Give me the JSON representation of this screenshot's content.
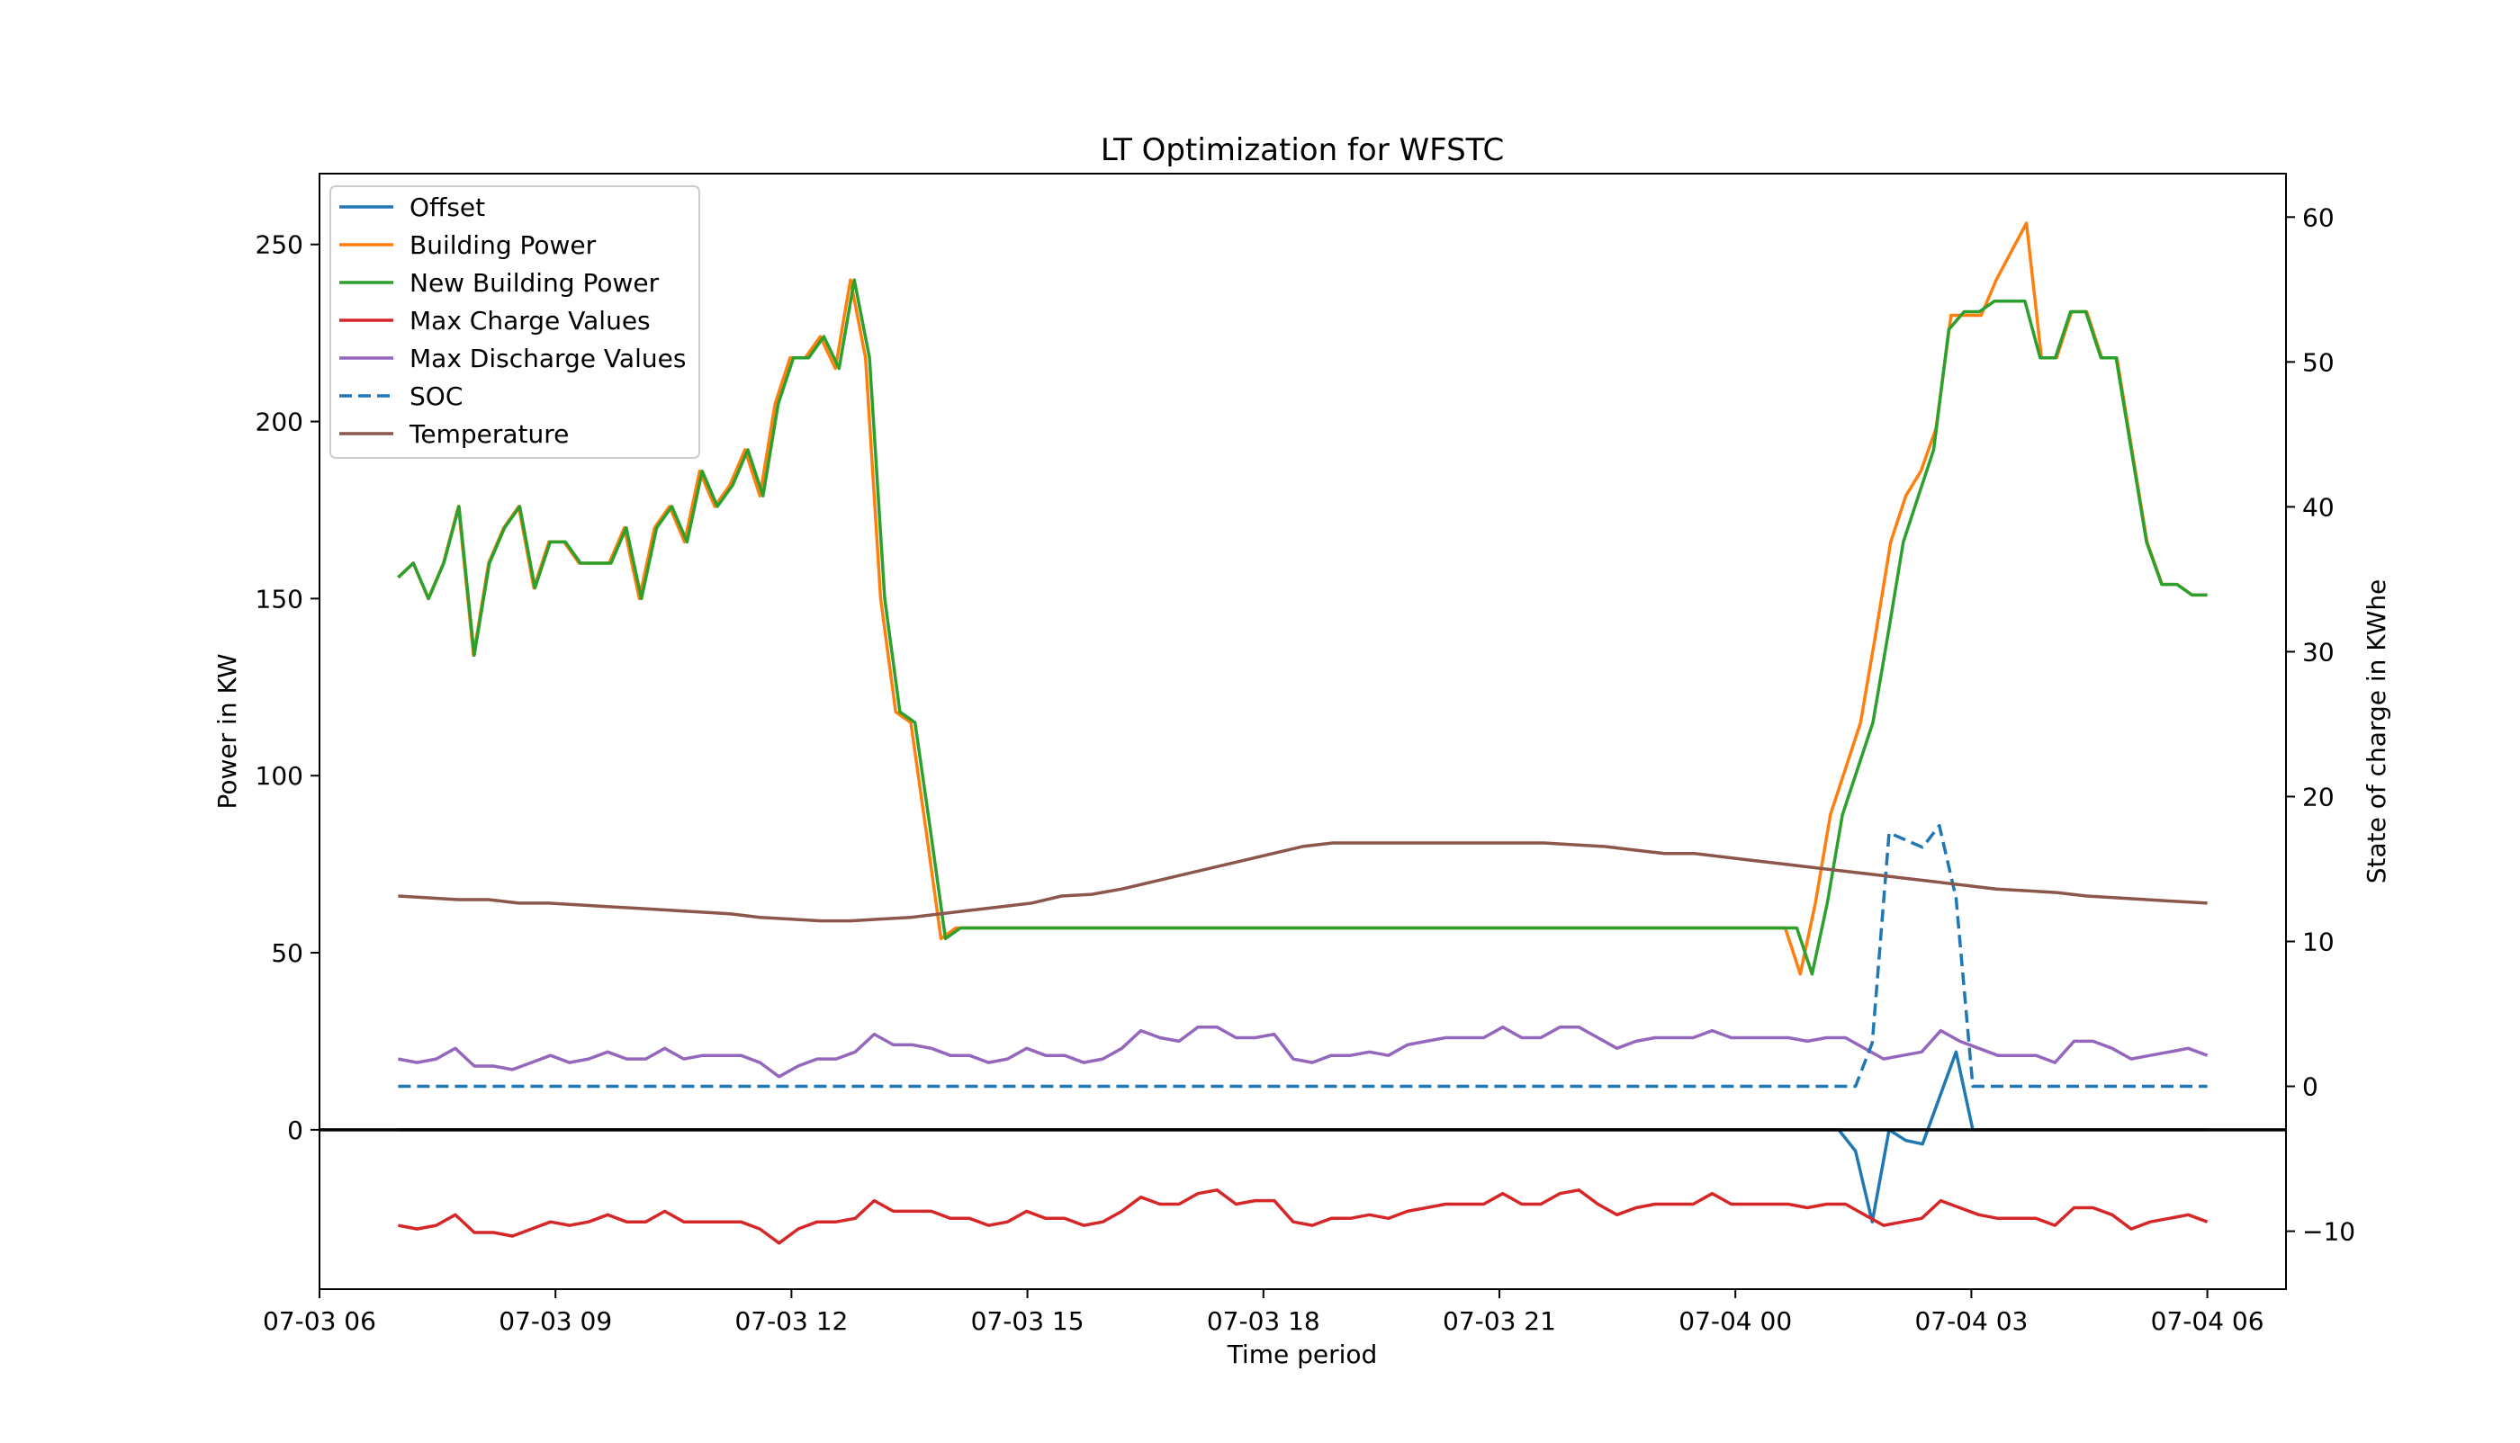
{
  "chart_data": {
    "type": "line",
    "title": "LT Optimization for WFSTC",
    "xlabel": "Time period",
    "ylabel": "Power in KW",
    "ylabel_right": "State of charge in KWhe",
    "xlim": [
      "07-03 06:00",
      "07-04 07:00"
    ],
    "ylim": [
      -45,
      270
    ],
    "ylim_right": [
      -14,
      63
    ],
    "x_ticks": [
      "07-03 06",
      "07-03 09",
      "07-03 12",
      "07-03 15",
      "07-03 18",
      "07-03 21",
      "07-04 00",
      "07-04 03",
      "07-04 06"
    ],
    "y_ticks": [
      0,
      50,
      100,
      150,
      200,
      250
    ],
    "y_ticks_right": [
      -10,
      0,
      10,
      20,
      30,
      40,
      50,
      60
    ],
    "grid": false,
    "legend_position": "upper-left",
    "x_start": "07-03 07:00",
    "x_step_minutes": 15,
    "series": [
      {
        "name": "Offset",
        "axis": "left",
        "style": "solid",
        "color": "#1f77b4",
        "values": [
          0,
          0,
          0,
          0,
          0,
          0,
          0,
          0,
          0,
          0,
          0,
          0,
          0,
          0,
          0,
          0,
          0,
          0,
          0,
          0,
          0,
          0,
          0,
          0,
          0,
          0,
          0,
          0,
          0,
          0,
          0,
          0,
          0,
          0,
          0,
          0,
          0,
          0,
          0,
          0,
          0,
          0,
          0,
          0,
          0,
          0,
          0,
          0,
          0,
          0,
          0,
          0,
          0,
          0,
          0,
          0,
          0,
          0,
          0,
          0,
          0,
          0,
          0,
          0,
          0,
          0,
          0,
          0,
          0,
          0,
          0,
          0,
          0,
          0,
          0,
          0,
          0,
          0,
          0,
          0,
          0,
          0,
          0,
          0,
          0,
          0,
          0,
          -6,
          -26,
          0,
          -3,
          -4,
          9,
          22,
          0,
          0,
          0,
          0,
          0,
          0,
          0,
          0,
          0,
          0,
          0,
          0,
          0,
          0,
          0
        ]
      },
      {
        "name": "Building Power",
        "axis": "left",
        "style": "solid",
        "color": "#ff7f0e",
        "values": [
          156,
          160,
          150,
          160,
          176,
          134,
          160,
          170,
          176,
          153,
          166,
          166,
          160,
          160,
          160,
          170,
          150,
          170,
          176,
          166,
          186,
          176,
          182,
          192,
          179,
          205,
          218,
          218,
          224,
          215,
          240,
          218,
          150,
          118,
          115,
          85,
          54,
          57,
          57,
          57,
          57,
          57,
          57,
          57,
          57,
          57,
          57,
          57,
          57,
          57,
          57,
          57,
          57,
          57,
          57,
          57,
          57,
          57,
          57,
          57,
          57,
          57,
          57,
          57,
          57,
          57,
          57,
          57,
          57,
          57,
          57,
          57,
          57,
          57,
          57,
          57,
          57,
          57,
          57,
          57,
          57,
          57,
          57,
          57,
          57,
          57,
          57,
          57,
          57,
          57,
          57,
          57,
          57,
          44,
          64,
          89,
          102,
          115,
          140,
          166,
          179,
          186,
          198,
          230,
          230,
          230,
          240,
          248,
          256,
          218,
          218,
          231,
          231,
          218,
          218,
          192,
          166,
          154,
          154,
          151,
          151
        ]
      },
      {
        "name": "New Building Power",
        "axis": "left",
        "style": "solid",
        "color": "#2ca02c",
        "values": [
          156,
          160,
          150,
          160,
          176,
          134,
          160,
          170,
          176,
          153,
          166,
          166,
          160,
          160,
          160,
          170,
          150,
          170,
          176,
          166,
          186,
          176,
          182,
          192,
          179,
          205,
          218,
          218,
          224,
          215,
          240,
          218,
          150,
          118,
          115,
          85,
          54,
          57,
          57,
          57,
          57,
          57,
          57,
          57,
          57,
          57,
          57,
          57,
          57,
          57,
          57,
          57,
          57,
          57,
          57,
          57,
          57,
          57,
          57,
          57,
          57,
          57,
          57,
          57,
          57,
          57,
          57,
          57,
          57,
          57,
          57,
          57,
          57,
          57,
          57,
          57,
          57,
          57,
          57,
          57,
          57,
          57,
          57,
          57,
          57,
          57,
          57,
          57,
          57,
          57,
          57,
          57,
          57,
          44,
          64,
          89,
          102,
          115,
          140,
          166,
          179,
          192,
          226,
          231,
          231,
          234,
          234,
          234,
          218,
          218,
          231,
          231,
          218,
          218,
          192,
          166,
          154,
          154,
          151,
          151
        ]
      },
      {
        "name": "Max Charge Values",
        "axis": "left",
        "style": "solid",
        "color": "#d62728",
        "values": [
          -27,
          -28,
          -27,
          -24,
          -29,
          -29,
          -30,
          -28,
          -26,
          -27,
          -26,
          -24,
          -26,
          -26,
          -23,
          -26,
          -26,
          -26,
          -26,
          -28,
          -32,
          -28,
          -26,
          -26,
          -25,
          -20,
          -23,
          -23,
          -23,
          -25,
          -25,
          -27,
          -26,
          -23,
          -25,
          -25,
          -27,
          -26,
          -23,
          -19,
          -21,
          -21,
          -18,
          -17,
          -21,
          -20,
          -20,
          -26,
          -27,
          -25,
          -25,
          -24,
          -25,
          -23,
          -22,
          -21,
          -21,
          -21,
          -18,
          -21,
          -21,
          -18,
          -17,
          -21,
          -24,
          -22,
          -21,
          -21,
          -21,
          -18,
          -21,
          -21,
          -21,
          -21,
          -22,
          -21,
          -21,
          -24,
          -27,
          -26,
          -25,
          -20,
          -22,
          -24,
          -25,
          -25,
          -25,
          -27,
          -22,
          -22,
          -24,
          -28,
          -26,
          -25,
          -24,
          -26
        ]
      },
      {
        "name": "Max Discharge Values",
        "axis": "left",
        "style": "solid",
        "color": "#9467bd",
        "values": [
          20,
          19,
          20,
          23,
          18,
          18,
          17,
          19,
          21,
          19,
          20,
          22,
          20,
          20,
          23,
          20,
          21,
          21,
          21,
          19,
          15,
          18,
          20,
          20,
          22,
          27,
          24,
          24,
          23,
          21,
          21,
          19,
          20,
          23,
          21,
          21,
          19,
          20,
          23,
          28,
          26,
          25,
          29,
          29,
          26,
          26,
          27,
          20,
          19,
          21,
          21,
          22,
          21,
          24,
          25,
          26,
          26,
          26,
          29,
          26,
          26,
          29,
          29,
          26,
          23,
          25,
          26,
          26,
          26,
          28,
          26,
          26,
          26,
          26,
          25,
          26,
          26,
          23,
          20,
          21,
          22,
          28,
          25,
          23,
          21,
          21,
          21,
          19,
          25,
          25,
          23,
          20,
          21,
          22,
          23,
          21
        ]
      },
      {
        "name": "SOC",
        "axis": "right",
        "style": "dashed",
        "color": "#1f77b4",
        "values": [
          0,
          0,
          0,
          0,
          0,
          0,
          0,
          0,
          0,
          0,
          0,
          0,
          0,
          0,
          0,
          0,
          0,
          0,
          0,
          0,
          0,
          0,
          0,
          0,
          0,
          0,
          0,
          0,
          0,
          0,
          0,
          0,
          0,
          0,
          0,
          0,
          0,
          0,
          0,
          0,
          0,
          0,
          0,
          0,
          0,
          0,
          0,
          0,
          0,
          0,
          0,
          0,
          0,
          0,
          0,
          0,
          0,
          0,
          0,
          0,
          0,
          0,
          0,
          0,
          0,
          0,
          0,
          0,
          0,
          0,
          0,
          0,
          0,
          0,
          0,
          0,
          0,
          0,
          0,
          0,
          0,
          0,
          0,
          0,
          0,
          0,
          0,
          0,
          3,
          17.5,
          17,
          16.5,
          18,
          13,
          0,
          0,
          0,
          0,
          0,
          0,
          0,
          0,
          0,
          0,
          0,
          0,
          0,
          0,
          0
        ]
      },
      {
        "name": "Temperature",
        "axis": "left",
        "style": "solid",
        "color": "#8c564b",
        "values": [
          66,
          65.5,
          65,
          65,
          64,
          64,
          63.5,
          63,
          62.5,
          62,
          61.5,
          61,
          60,
          59.5,
          59,
          59,
          59.5,
          60,
          61,
          62,
          63,
          64,
          66,
          66.5,
          68,
          70,
          72,
          74,
          76,
          78,
          80,
          81,
          81,
          81,
          81,
          81,
          81,
          81,
          81,
          80.5,
          80,
          79,
          78,
          78,
          77,
          76,
          75,
          74,
          73,
          72,
          71,
          70,
          69,
          68,
          67.5,
          67,
          66,
          65.5,
          65,
          64.5,
          64
        ]
      }
    ]
  }
}
